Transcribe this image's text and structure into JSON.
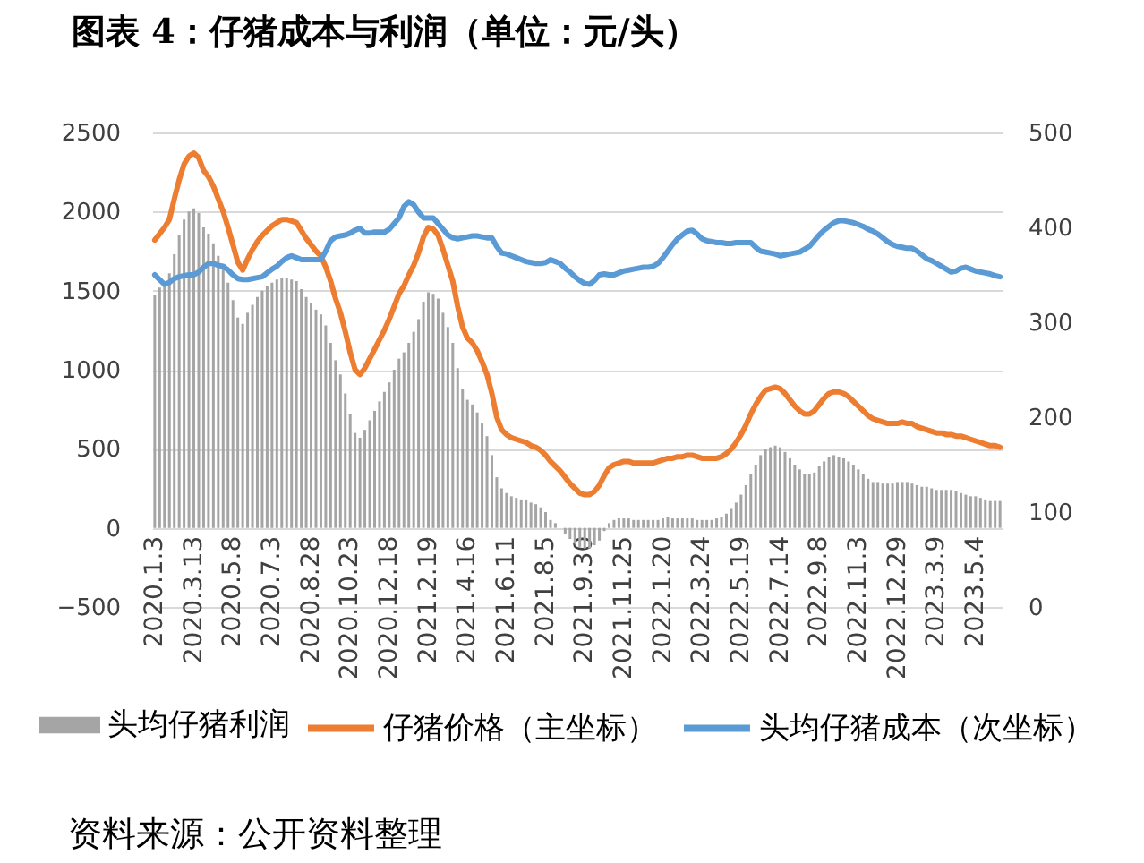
{
  "chart_data": {
    "type": "bar",
    "title": "图表 4：仔猪成本与利润（单位：元/头）",
    "annotations": [
      "资料来源：公开资料整理"
    ],
    "categories": [
      "2020.1.3",
      null,
      null,
      null,
      null,
      null,
      null,
      null,
      "2020.3.13",
      null,
      null,
      null,
      null,
      null,
      null,
      null,
      "2020.5.8",
      null,
      null,
      null,
      null,
      null,
      null,
      null,
      "2020.7.3",
      null,
      null,
      null,
      null,
      null,
      null,
      null,
      "2020.8.28",
      null,
      null,
      null,
      null,
      null,
      null,
      null,
      "2020.10.23",
      null,
      null,
      null,
      null,
      null,
      null,
      null,
      "2020.12.18",
      null,
      null,
      null,
      null,
      null,
      null,
      null,
      "2021.2.19",
      null,
      null,
      null,
      null,
      null,
      null,
      null,
      "2021.4.16",
      null,
      null,
      null,
      null,
      null,
      null,
      null,
      "2021.6.11",
      null,
      null,
      null,
      null,
      null,
      null,
      null,
      "2021.8.5",
      null,
      null,
      null,
      null,
      null,
      null,
      null,
      "2021.9.30",
      null,
      null,
      null,
      null,
      null,
      null,
      null,
      "2021.11.25",
      null,
      null,
      null,
      null,
      null,
      null,
      null,
      "2022.1.20",
      null,
      null,
      null,
      null,
      null,
      null,
      null,
      "2022.3.24",
      null,
      null,
      null,
      null,
      null,
      null,
      null,
      "2022.5.19",
      null,
      null,
      null,
      null,
      null,
      null,
      null,
      "2022.7.14",
      null,
      null,
      null,
      null,
      null,
      null,
      null,
      "2022.9.8",
      null,
      null,
      null,
      null,
      null,
      null,
      null,
      "2022.11.3",
      null,
      null,
      null,
      null,
      null,
      null,
      null,
      "2022.12.29",
      null,
      null,
      null,
      null,
      null,
      null,
      null,
      "2023.3.9",
      null,
      null,
      null,
      null,
      null,
      null,
      null,
      "2023.5.4",
      null,
      null,
      null,
      null,
      null
    ],
    "series": [
      {
        "name": "头均仔猪利润",
        "color": "#a5a5a5",
        "values": [
          1470,
          1520,
          1560,
          1610,
          1730,
          1850,
          1950,
          2000,
          2020,
          1990,
          1900,
          1860,
          1800,
          1720,
          1640,
          1550,
          1440,
          1330,
          1290,
          1360,
          1410,
          1460,
          1500,
          1530,
          1550,
          1570,
          1580,
          1580,
          1570,
          1560,
          1510,
          1460,
          1420,
          1380,
          1350,
          1280,
          1170,
          1060,
          970,
          850,
          720,
          600,
          570,
          620,
          680,
          740,
          800,
          860,
          920,
          1000,
          1070,
          1110,
          1170,
          1240,
          1320,
          1430,
          1490,
          1480,
          1450,
          1360,
          1270,
          1170,
          1010,
          880,
          810,
          780,
          730,
          660,
          580,
          460,
          320,
          250,
          220,
          200,
          190,
          180,
          180,
          160,
          150,
          130,
          100,
          50,
          30,
          0,
          -40,
          -70,
          -100,
          -120,
          -130,
          -130,
          -110,
          -80,
          -20,
          30,
          50,
          60,
          60,
          60,
          50,
          50,
          50,
          50,
          50,
          50,
          60,
          70,
          60,
          60,
          60,
          60,
          60,
          50,
          50,
          50,
          50,
          60,
          70,
          90,
          120,
          160,
          210,
          270,
          340,
          400,
          460,
          500,
          510,
          520,
          510,
          480,
          440,
          400,
          370,
          340,
          340,
          350,
          390,
          420,
          450,
          460,
          450,
          440,
          420,
          400,
          370,
          340,
          310,
          290,
          290,
          280,
          280,
          280,
          290,
          290,
          290,
          280,
          270,
          260,
          260,
          250,
          240,
          240,
          240,
          240,
          230,
          220,
          210,
          200,
          200,
          190,
          180,
          170,
          170,
          170
        ]
      },
      {
        "name": "仔猪价格（主坐标）",
        "type": "line",
        "color": "#ed7d31",
        "values": [
          1820,
          1860,
          1900,
          1950,
          2080,
          2200,
          2300,
          2350,
          2370,
          2340,
          2260,
          2220,
          2160,
          2080,
          2000,
          1900,
          1790,
          1680,
          1630,
          1700,
          1760,
          1810,
          1850,
          1880,
          1910,
          1930,
          1950,
          1950,
          1940,
          1930,
          1880,
          1830,
          1790,
          1750,
          1720,
          1650,
          1560,
          1450,
          1360,
          1240,
          1110,
          1000,
          970,
          1010,
          1070,
          1130,
          1190,
          1250,
          1320,
          1400,
          1480,
          1530,
          1600,
          1660,
          1740,
          1840,
          1900,
          1890,
          1850,
          1760,
          1660,
          1560,
          1400,
          1270,
          1200,
          1170,
          1120,
          1050,
          970,
          850,
          700,
          620,
          590,
          570,
          560,
          550,
          540,
          520,
          510,
          490,
          460,
          420,
          390,
          360,
          320,
          280,
          250,
          220,
          210,
          210,
          230,
          270,
          330,
          380,
          400,
          410,
          420,
          420,
          410,
          410,
          410,
          410,
          410,
          420,
          430,
          440,
          440,
          450,
          450,
          460,
          460,
          450,
          440,
          440,
          440,
          440,
          450,
          470,
          500,
          540,
          590,
          650,
          720,
          780,
          830,
          870,
          880,
          890,
          880,
          850,
          810,
          770,
          740,
          720,
          720,
          740,
          780,
          820,
          850,
          860,
          860,
          850,
          830,
          800,
          770,
          740,
          710,
          690,
          680,
          670,
          660,
          660,
          660,
          670,
          660,
          660,
          640,
          630,
          620,
          610,
          600,
          600,
          590,
          590,
          580,
          580,
          570,
          560,
          550,
          540,
          530,
          520,
          520,
          510
        ]
      },
      {
        "name": "头均仔猪成本（次坐标）",
        "type": "line",
        "axis": "y2",
        "color": "#5b9bd5",
        "values": [
          350,
          345,
          340,
          342,
          346,
          348,
          349,
          350,
          350,
          353,
          358,
          362,
          362,
          360,
          359,
          355,
          350,
          346,
          345,
          345,
          346,
          347,
          348,
          352,
          356,
          359,
          364,
          368,
          370,
          368,
          366,
          366,
          366,
          366,
          366,
          375,
          386,
          390,
          391,
          392,
          394,
          397,
          399,
          394,
          394,
          395,
          395,
          395,
          398,
          404,
          410,
          422,
          427,
          424,
          416,
          410,
          410,
          410,
          404,
          398,
          392,
          389,
          388,
          389,
          390,
          391,
          391,
          390,
          389,
          389,
          380,
          373,
          372,
          370,
          368,
          366,
          364,
          363,
          362,
          362,
          363,
          366,
          364,
          362,
          357,
          353,
          348,
          344,
          341,
          340,
          344,
          350,
          351,
          350,
          350,
          352,
          354,
          355,
          356,
          357,
          358,
          358,
          359,
          362,
          368,
          375,
          382,
          388,
          392,
          396,
          397,
          393,
          388,
          386,
          385,
          384,
          384,
          383,
          383,
          384,
          384,
          384,
          384,
          379,
          375,
          374,
          373,
          372,
          370,
          371,
          372,
          373,
          374,
          377,
          380,
          386,
          392,
          397,
          401,
          405,
          407,
          407,
          406,
          405,
          403,
          401,
          398,
          396,
          393,
          389,
          385,
          382,
          380,
          379,
          378,
          378,
          375,
          371,
          367,
          365,
          362,
          359,
          356,
          353,
          354,
          357,
          358,
          356,
          354,
          353,
          352,
          351,
          349,
          348
        ]
      }
    ],
    "ylim": [
      -500,
      2500
    ],
    "yticks": [
      -500,
      0,
      500,
      1000,
      1500,
      2000,
      2500
    ],
    "y2lim": [
      0,
      500
    ],
    "y2ticks": [
      0,
      100,
      200,
      300,
      400,
      500
    ],
    "grid": "y",
    "legend": "bottom"
  }
}
